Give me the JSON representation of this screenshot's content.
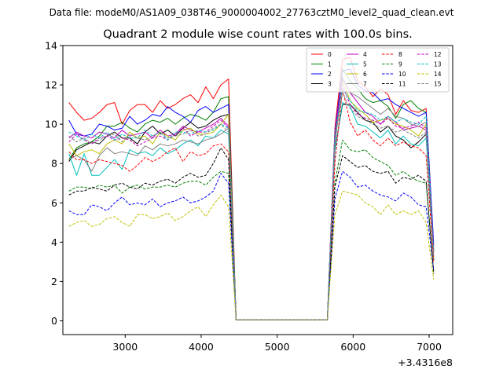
{
  "figure": {
    "suptitle": "Data file: modeM0/AS1A09_038T46_9000004002_27763cztM0_level2_quad_clean.evt"
  },
  "chart_data": {
    "type": "line",
    "title": "Quadrant 2 module wise count rates with 100.0s bins.",
    "xlabel": "",
    "ylabel": "",
    "x_offset_label": "+3.4316e8",
    "xlim": [
      2180,
      7310
    ],
    "ylim": [
      -0.7,
      14
    ],
    "x_ticks": [
      3000,
      4000,
      5000,
      6000,
      7000
    ],
    "y_ticks": [
      0,
      2,
      4,
      6,
      8,
      10,
      12,
      14
    ],
    "grid": false,
    "legend": {
      "placement": "top-right",
      "columns": 4
    },
    "x": [
      2260,
      2360,
      2460,
      2560,
      2660,
      2760,
      2860,
      2960,
      3060,
      3160,
      3260,
      3360,
      3460,
      3560,
      3660,
      3760,
      3860,
      3960,
      4060,
      4160,
      4260,
      4360,
      4460,
      5660,
      5760,
      5860,
      5960,
      6060,
      6160,
      6260,
      6360,
      6460,
      6560,
      6660,
      6760,
      6860,
      6960,
      7060
    ],
    "series": [
      {
        "name": "0",
        "color": "#ff0000",
        "dash": "solid",
        "values": [
          11.1,
          10.6,
          10.2,
          10.3,
          10.6,
          11.0,
          11.1,
          10.0,
          10.7,
          11.0,
          11.0,
          10.6,
          11.2,
          10.8,
          11.0,
          11.3,
          11.5,
          11.1,
          11.9,
          11.3,
          12.0,
          12.3,
          0.05,
          0.05,
          9.8,
          13.3,
          13.4,
          12.2,
          11.9,
          11.4,
          11.8,
          11.5,
          10.5,
          11.2,
          10.7,
          10.6,
          10.8,
          3.8
        ]
      },
      {
        "name": "1",
        "color": "#008000",
        "dash": "solid",
        "values": [
          8.2,
          8.8,
          9.0,
          9.1,
          9.4,
          9.9,
          9.9,
          10.1,
          9.8,
          9.6,
          10.0,
          10.2,
          10.1,
          10.3,
          10.0,
          10.3,
          10.5,
          10.4,
          10.2,
          10.6,
          11.3,
          11.4,
          0.05,
          0.05,
          9.3,
          12.8,
          12.2,
          11.8,
          11.3,
          11.1,
          11.2,
          10.9,
          10.3,
          11.0,
          11.2,
          10.8,
          10.6,
          3.6
        ]
      },
      {
        "name": "2",
        "color": "#0000ff",
        "dash": "solid",
        "values": [
          10.2,
          9.5,
          9.4,
          9.5,
          10.0,
          9.9,
          9.7,
          9.8,
          10.4,
          10.0,
          10.2,
          10.5,
          10.4,
          10.9,
          10.6,
          10.4,
          10.1,
          10.7,
          10.9,
          10.6,
          10.8,
          11.0,
          0.05,
          0.05,
          9.6,
          12.7,
          12.8,
          12.0,
          11.7,
          11.6,
          11.2,
          11.3,
          11.0,
          10.8,
          10.6,
          10.4,
          10.6,
          3.9
        ]
      },
      {
        "name": "3",
        "color": "#000000",
        "dash": "solid",
        "values": [
          8.1,
          8.7,
          8.9,
          9.1,
          9.0,
          9.4,
          9.6,
          9.3,
          9.3,
          9.0,
          9.6,
          9.9,
          9.5,
          9.7,
          9.4,
          9.8,
          10.1,
          9.8,
          9.9,
          10.2,
          10.4,
          10.5,
          0.05,
          0.05,
          8.7,
          11.0,
          11.0,
          10.6,
          10.2,
          10.1,
          9.6,
          9.9,
          9.4,
          9.2,
          8.8,
          9.1,
          9.5,
          3.1
        ]
      },
      {
        "name": "4",
        "color": "#bf00bf",
        "dash": "solid",
        "values": [
          9.3,
          9.6,
          9.4,
          9.3,
          9.6,
          9.5,
          9.3,
          9.7,
          9.4,
          9.5,
          9.6,
          9.3,
          9.7,
          9.4,
          9.5,
          9.9,
          9.7,
          9.6,
          9.8,
          10.0,
          10.3,
          9.9,
          0.05,
          0.05,
          9.6,
          12.3,
          11.6,
          11.1,
          10.6,
          10.4,
          10.0,
          10.4,
          10.1,
          9.7,
          9.8,
          9.9,
          9.7,
          3.5
        ]
      },
      {
        "name": "5",
        "color": "#00bfbf",
        "dash": "solid",
        "values": [
          8.5,
          7.4,
          8.5,
          7.4,
          7.4,
          7.8,
          8.2,
          7.7,
          8.7,
          8.5,
          8.6,
          8.4,
          8.8,
          8.5,
          8.7,
          9.0,
          9.2,
          8.9,
          9.4,
          9.3,
          9.7,
          9.5,
          0.05,
          0.05,
          8.6,
          11.1,
          10.9,
          10.0,
          9.9,
          9.6,
          9.3,
          9.7,
          9.0,
          9.4,
          9.0,
          8.9,
          9.3,
          3.1
        ]
      },
      {
        "name": "6",
        "color": "#bfbf00",
        "dash": "solid",
        "values": [
          9.0,
          8.4,
          8.6,
          8.7,
          8.5,
          9.0,
          9.2,
          9.0,
          9.6,
          9.3,
          9.4,
          9.0,
          9.6,
          9.4,
          9.2,
          9.7,
          9.8,
          9.5,
          9.5,
          9.6,
          10.0,
          10.5,
          0.05,
          0.05,
          9.0,
          12.2,
          11.2,
          10.8,
          10.5,
          10.1,
          10.2,
          10.3,
          10.0,
          9.9,
          9.7,
          9.4,
          10.0,
          3.2
        ]
      },
      {
        "name": "7",
        "color": "#808080",
        "dash": "solid",
        "values": [
          8.2,
          8.4,
          8.2,
          7.6,
          8.4,
          8.8,
          8.5,
          8.6,
          8.5,
          8.4,
          8.9,
          8.7,
          9.0,
          8.9,
          9.0,
          9.2,
          9.1,
          9.0,
          9.2,
          9.3,
          9.5,
          9.8,
          0.05,
          0.05,
          8.9,
          12.4,
          11.6,
          11.4,
          11.1,
          10.8,
          10.5,
          10.8,
          10.4,
          10.3,
          10.0,
          9.9,
          10.1,
          3.5
        ]
      },
      {
        "name": "8",
        "color": "#ff0000",
        "dash": "dashed",
        "values": [
          8.6,
          8.2,
          8.2,
          8.0,
          8.2,
          8.1,
          8.0,
          7.9,
          7.6,
          7.9,
          8.3,
          8.1,
          8.3,
          8.6,
          8.8,
          8.1,
          8.6,
          8.4,
          8.5,
          8.9,
          9.0,
          8.6,
          0.05,
          0.05,
          8.0,
          11.8,
          10.1,
          9.4,
          9.7,
          9.2,
          8.9,
          9.3,
          8.9,
          9.1,
          8.9,
          8.8,
          8.4,
          3.0
        ]
      },
      {
        "name": "9",
        "color": "#008000",
        "dash": "dashed",
        "values": [
          6.6,
          6.8,
          6.8,
          6.7,
          6.9,
          6.8,
          6.9,
          6.5,
          6.8,
          6.9,
          6.7,
          6.8,
          6.8,
          6.9,
          6.8,
          7.0,
          7.1,
          7.1,
          6.9,
          7.3,
          7.6,
          7.5,
          0.05,
          0.05,
          7.0,
          9.2,
          8.7,
          8.6,
          8.7,
          8.3,
          8.1,
          7.9,
          7.4,
          7.6,
          7.3,
          7.1,
          7.0,
          2.5
        ]
      },
      {
        "name": "10",
        "color": "#0000ff",
        "dash": "dashed",
        "values": [
          5.6,
          5.4,
          5.4,
          5.9,
          5.8,
          5.6,
          6.0,
          6.3,
          5.9,
          6.0,
          5.9,
          6.2,
          5.8,
          6.0,
          6.1,
          6.3,
          6.0,
          6.1,
          6.3,
          6.6,
          7.5,
          7.0,
          0.05,
          0.05,
          6.2,
          7.6,
          7.3,
          6.8,
          6.9,
          6.6,
          6.4,
          6.3,
          6.1,
          6.5,
          6.3,
          5.9,
          5.8,
          2.6
        ]
      },
      {
        "name": "11",
        "color": "#000000",
        "dash": "dashed",
        "values": [
          6.4,
          6.6,
          6.6,
          6.8,
          6.7,
          6.6,
          6.9,
          7.0,
          6.8,
          6.7,
          7.0,
          6.9,
          7.1,
          7.2,
          7.0,
          7.3,
          7.5,
          7.3,
          7.4,
          8.0,
          8.8,
          8.2,
          0.05,
          0.05,
          6.8,
          8.4,
          8.1,
          7.8,
          7.9,
          7.6,
          7.5,
          7.6,
          7.0,
          7.3,
          7.2,
          7.4,
          7.1,
          2.4
        ]
      },
      {
        "name": "12",
        "color": "#bf00bf",
        "dash": "dashed",
        "values": [
          9.1,
          9.5,
          9.2,
          9.0,
          9.3,
          9.4,
          9.2,
          9.3,
          9.2,
          8.9,
          9.1,
          9.3,
          9.4,
          9.2,
          9.5,
          9.8,
          9.4,
          9.6,
          9.6,
          9.9,
          10.2,
          9.8,
          0.05,
          0.05,
          9.3,
          12.0,
          11.0,
          10.5,
          10.3,
          10.2,
          10.0,
          10.3,
          9.9,
          9.8,
          9.9,
          10.1,
          9.8,
          3.3
        ]
      },
      {
        "name": "13",
        "color": "#00bfbf",
        "dash": "dashed",
        "values": [
          9.6,
          9.4,
          9.2,
          9.5,
          9.3,
          9.6,
          9.2,
          9.5,
          9.3,
          9.3,
          9.7,
          9.4,
          9.6,
          9.2,
          9.6,
          9.6,
          9.5,
          9.7,
          9.6,
          9.7,
          10.0,
          9.8,
          0.05,
          0.05,
          9.5,
          11.8,
          11.2,
          10.7,
          10.6,
          10.5,
          10.2,
          10.4,
          10.1,
          10.3,
          10.1,
          10.0,
          10.4,
          3.4
        ]
      },
      {
        "name": "14",
        "color": "#bfbf00",
        "dash": "dashed",
        "values": [
          4.8,
          5.0,
          5.1,
          4.8,
          4.9,
          5.2,
          5.3,
          5.0,
          4.8,
          5.4,
          5.4,
          5.2,
          5.3,
          5.5,
          5.1,
          5.3,
          5.6,
          5.8,
          5.3,
          5.9,
          6.4,
          5.8,
          0.05,
          0.05,
          5.4,
          6.6,
          6.5,
          6.4,
          6.0,
          5.8,
          5.4,
          5.9,
          5.4,
          5.6,
          5.4,
          5.6,
          5.0,
          2.1
        ]
      },
      {
        "name": "15",
        "color": "#808080",
        "dash": "dashed",
        "values": [
          9.4,
          9.1,
          9.3,
          9.0,
          9.2,
          9.4,
          9.5,
          9.1,
          9.5,
          9.3,
          9.2,
          9.4,
          9.6,
          9.3,
          9.4,
          9.5,
          9.7,
          9.4,
          9.5,
          9.8,
          10.0,
          9.6,
          0.05,
          0.05,
          9.2,
          11.6,
          10.8,
          10.4,
          10.2,
          10.0,
          9.8,
          9.9,
          9.6,
          9.7,
          9.5,
          9.3,
          9.6,
          3.3
        ]
      }
    ]
  }
}
